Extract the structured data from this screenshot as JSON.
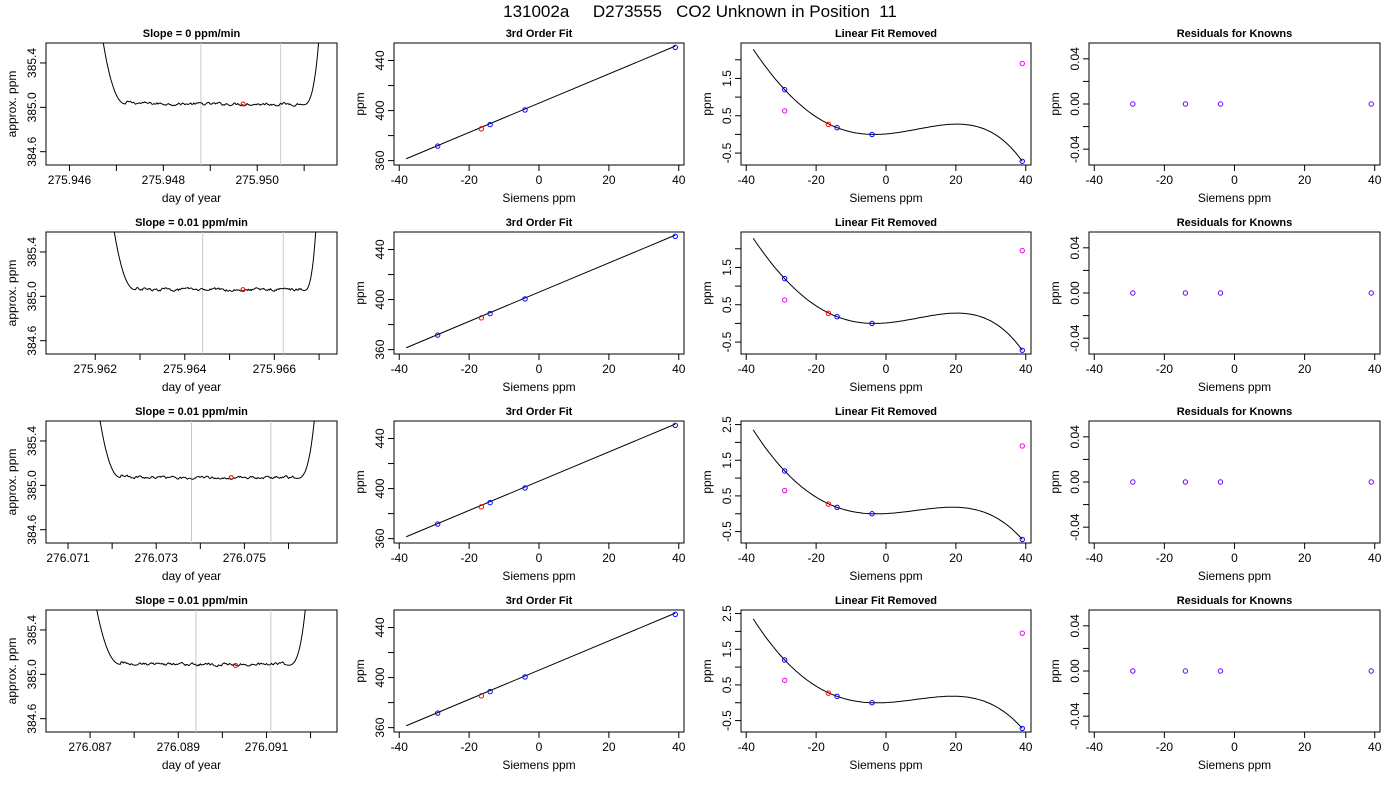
{
  "page": {
    "title": "131002a     D273555   CO2 Unknown in Position  11"
  },
  "chart_data": [
    {
      "type": "line",
      "row": 0,
      "col": 0,
      "title": "Slope =  0  ppm/min",
      "xlabel": "day of year",
      "ylabel": "approx. ppm",
      "xlim": [
        275.9455,
        275.9517
      ],
      "ylim": [
        384.48,
        385.58
      ],
      "xticks": [
        275.946,
        275.948,
        275.95
      ],
      "xminor_ticks": [
        275.947,
        275.949,
        275.951
      ],
      "yticks": [
        384.6,
        385.0,
        385.4
      ],
      "vlines": [
        275.9488,
        275.9505
      ],
      "trace": {
        "t0": 275.9466,
        "t_rise": 275.9472,
        "t_flat_end": 275.9509,
        "t1": 275.9514,
        "level": 385.03,
        "start_level": 385.58,
        "noise": 0.012,
        "drift": 0
      },
      "marker": {
        "x": 275.9497,
        "y": 385.03
      }
    },
    {
      "type": "scatter",
      "row": 0,
      "col": 1,
      "title": "3rd Order Fit",
      "xlabel": "Siemens ppm",
      "ylabel": "ppm",
      "xlim": [
        -41.5,
        41.5
      ],
      "ylim": [
        356.5,
        454
      ],
      "xticks": [
        -40,
        -20,
        0,
        20,
        40
      ],
      "yticks": [
        360,
        400,
        440
      ],
      "yminor_ticks": [
        380,
        420
      ],
      "fit_line": {
        "x": [
          -38,
          39
        ],
        "y": [
          361.5,
          451.5
        ]
      },
      "points": [
        {
          "x": -29,
          "y": 371.6,
          "color": "#0000ff"
        },
        {
          "x": -14,
          "y": 388.8,
          "color": "#0000ff"
        },
        {
          "x": -4,
          "y": 400.5,
          "color": "#0000ff"
        },
        {
          "x": 39,
          "y": 450.5,
          "color": "#0000ff"
        },
        {
          "x": -16.5,
          "y": 385.4,
          "color": "#ff0000"
        }
      ]
    },
    {
      "type": "line",
      "row": 0,
      "col": 2,
      "title": "Linear Fit Removed",
      "xlabel": "Siemens ppm",
      "ylabel": "ppm",
      "xlim": [
        -41.5,
        41.5
      ],
      "ylim": [
        -0.82,
        2.45
      ],
      "xticks": [
        -40,
        -20,
        0,
        20,
        40
      ],
      "yticks": [
        -0.5,
        0.5,
        1.5
      ],
      "yminor_ticks": [
        0,
        1,
        2
      ],
      "curve_points": [
        [
          -38,
          2.28
        ],
        [
          -29,
          1.2
        ],
        [
          -14,
          0.18
        ],
        [
          -4,
          0.0
        ],
        [
          39,
          -0.72
        ]
      ],
      "points": [
        {
          "x": -29,
          "y": 1.2,
          "color": "#0000ff"
        },
        {
          "x": -14,
          "y": 0.18,
          "color": "#0000ff"
        },
        {
          "x": -4,
          "y": 0.0,
          "color": "#0000ff"
        },
        {
          "x": 39,
          "y": -0.72,
          "color": "#0000ff"
        },
        {
          "x": -16.5,
          "y": 0.27,
          "color": "#ff0000"
        },
        {
          "x": -29,
          "y": 0.63,
          "color": "#ee00ee"
        },
        {
          "x": 39,
          "y": 1.9,
          "color": "#ee00ee"
        }
      ]
    },
    {
      "type": "scatter",
      "row": 0,
      "col": 3,
      "title": "Residuals for Knowns",
      "xlabel": "Siemens ppm",
      "ylabel": "ppm",
      "xlim": [
        -41.5,
        41.5
      ],
      "ylim": [
        -0.054,
        0.054
      ],
      "xticks": [
        -40,
        -20,
        0,
        20,
        40
      ],
      "yticks": [
        -0.04,
        0.0,
        0.04
      ],
      "yminor_ticks": [
        -0.02,
        0.02
      ],
      "points": [
        {
          "x": -29,
          "y": 0,
          "color": "#6a00ff"
        },
        {
          "x": -14,
          "y": 0,
          "color": "#6a00ff"
        },
        {
          "x": -4,
          "y": 0,
          "color": "#6a00ff"
        },
        {
          "x": 39,
          "y": 0,
          "color": "#6a00ff"
        }
      ]
    },
    {
      "type": "line",
      "row": 1,
      "col": 0,
      "title": "Slope =  0.01  ppm/min",
      "xlabel": "day of year",
      "ylabel": "approx. ppm",
      "xlim": [
        275.9609,
        275.9674
      ],
      "ylim": [
        384.48,
        385.58
      ],
      "xticks": [
        275.962,
        275.964,
        275.966
      ],
      "xminor_ticks": [
        275.963,
        275.965,
        275.967
      ],
      "yticks": [
        384.6,
        385.0,
        385.4
      ],
      "vlines": [
        275.9644,
        275.9662
      ],
      "trace": {
        "t0": 275.9623,
        "t_rise": 275.9629,
        "t_flat_end": 275.9666,
        "t1": 275.967,
        "level": 385.06,
        "start_level": 385.58,
        "noise": 0.012,
        "drift": 0.01
      },
      "marker": {
        "x": 275.9653,
        "y": 385.06
      }
    },
    {
      "type": "scatter",
      "row": 1,
      "col": 1,
      "title": "3rd Order Fit",
      "xlabel": "Siemens ppm",
      "ylabel": "ppm",
      "xlim": [
        -41.5,
        41.5
      ],
      "ylim": [
        356.5,
        454
      ],
      "xticks": [
        -40,
        -20,
        0,
        20,
        40
      ],
      "yticks": [
        360,
        400,
        440
      ],
      "yminor_ticks": [
        380,
        420
      ],
      "fit_line": {
        "x": [
          -38,
          39
        ],
        "y": [
          361.5,
          451.5
        ]
      },
      "points": [
        {
          "x": -29,
          "y": 371.6,
          "color": "#0000ff"
        },
        {
          "x": -14,
          "y": 388.8,
          "color": "#0000ff"
        },
        {
          "x": -4,
          "y": 400.5,
          "color": "#0000ff"
        },
        {
          "x": 39,
          "y": 450.5,
          "color": "#0000ff"
        },
        {
          "x": -16.5,
          "y": 385.4,
          "color": "#ff0000"
        }
      ]
    },
    {
      "type": "line",
      "row": 1,
      "col": 2,
      "title": "Linear Fit Removed",
      "xlabel": "Siemens ppm",
      "ylabel": "ppm",
      "xlim": [
        -41.5,
        41.5
      ],
      "ylim": [
        -0.82,
        2.45
      ],
      "xticks": [
        -40,
        -20,
        0,
        20,
        40
      ],
      "yticks": [
        -0.5,
        0.5,
        1.5
      ],
      "yminor_ticks": [
        0,
        1,
        2
      ],
      "curve_points": [
        [
          -38,
          2.28
        ],
        [
          -29,
          1.2
        ],
        [
          -14,
          0.18
        ],
        [
          -4,
          0.0
        ],
        [
          39,
          -0.72
        ]
      ],
      "points": [
        {
          "x": -29,
          "y": 1.2,
          "color": "#0000ff"
        },
        {
          "x": -14,
          "y": 0.18,
          "color": "#0000ff"
        },
        {
          "x": -4,
          "y": 0.0,
          "color": "#0000ff"
        },
        {
          "x": 39,
          "y": -0.72,
          "color": "#0000ff"
        },
        {
          "x": -16.5,
          "y": 0.27,
          "color": "#ff0000"
        },
        {
          "x": -29,
          "y": 0.63,
          "color": "#ee00ee"
        },
        {
          "x": 39,
          "y": 1.95,
          "color": "#ee00ee"
        }
      ]
    },
    {
      "type": "scatter",
      "row": 1,
      "col": 3,
      "title": "Residuals for Knowns",
      "xlabel": "Siemens ppm",
      "ylabel": "ppm",
      "xlim": [
        -41.5,
        41.5
      ],
      "ylim": [
        -0.054,
        0.054
      ],
      "xticks": [
        -40,
        -20,
        0,
        20,
        40
      ],
      "yticks": [
        -0.04,
        0.0,
        0.04
      ],
      "yminor_ticks": [
        -0.02,
        0.02
      ],
      "points": [
        {
          "x": -29,
          "y": 0,
          "color": "#6a00ff"
        },
        {
          "x": -14,
          "y": 0,
          "color": "#6a00ff"
        },
        {
          "x": -4,
          "y": 0,
          "color": "#6a00ff"
        },
        {
          "x": 39,
          "y": 0,
          "color": "#6a00ff"
        }
      ]
    },
    {
      "type": "line",
      "row": 2,
      "col": 0,
      "title": "Slope =  0.01  ppm/min",
      "xlabel": "day of year",
      "ylabel": "approx. ppm",
      "xlim": [
        276.0705,
        276.0771
      ],
      "ylim": [
        384.48,
        385.58
      ],
      "xticks": [
        276.071,
        276.073,
        276.075
      ],
      "xminor_ticks": [
        276.072,
        276.074,
        276.076
      ],
      "yticks": [
        384.6,
        385.0,
        385.4
      ],
      "vlines": [
        276.0738,
        276.0756
      ],
      "trace": {
        "t0": 276.0716,
        "t_rise": 276.0722,
        "t_flat_end": 276.0761,
        "t1": 276.0767,
        "level": 385.07,
        "start_level": 385.58,
        "noise": 0.011,
        "drift": 0.005
      },
      "marker": {
        "x": 276.0747,
        "y": 385.07
      }
    },
    {
      "type": "scatter",
      "row": 2,
      "col": 1,
      "title": "3rd Order Fit",
      "xlabel": "Siemens ppm",
      "ylabel": "ppm",
      "xlim": [
        -41.5,
        41.5
      ],
      "ylim": [
        356.5,
        454
      ],
      "xticks": [
        -40,
        -20,
        0,
        20,
        40
      ],
      "yticks": [
        360,
        400,
        440
      ],
      "yminor_ticks": [
        380,
        420
      ],
      "fit_line": {
        "x": [
          -38,
          39
        ],
        "y": [
          361.5,
          451.5
        ]
      },
      "points": [
        {
          "x": -29,
          "y": 371.6,
          "color": "#0000ff"
        },
        {
          "x": -14,
          "y": 388.8,
          "color": "#0000ff"
        },
        {
          "x": -4,
          "y": 400.5,
          "color": "#0000ff"
        },
        {
          "x": 39,
          "y": 450.5,
          "color": "#0000ff"
        },
        {
          "x": -16.5,
          "y": 385.4,
          "color": "#ff0000"
        }
      ]
    },
    {
      "type": "line",
      "row": 2,
      "col": 2,
      "title": "Linear Fit Removed",
      "xlabel": "Siemens ppm",
      "ylabel": "ppm",
      "xlim": [
        -41.5,
        41.5
      ],
      "ylim": [
        -0.82,
        2.6
      ],
      "xticks": [
        -40,
        -20,
        0,
        20,
        40
      ],
      "yticks": [
        -0.5,
        0.5,
        1.5,
        2.5
      ],
      "yminor_ticks": [
        0,
        1,
        2
      ],
      "curve_points": [
        [
          -38,
          2.35
        ],
        [
          -29,
          1.2
        ],
        [
          -14,
          0.18
        ],
        [
          -4,
          0.0
        ],
        [
          39,
          -0.72
        ]
      ],
      "points": [
        {
          "x": -29,
          "y": 1.2,
          "color": "#0000ff"
        },
        {
          "x": -14,
          "y": 0.18,
          "color": "#0000ff"
        },
        {
          "x": -4,
          "y": 0.0,
          "color": "#0000ff"
        },
        {
          "x": 39,
          "y": -0.72,
          "color": "#0000ff"
        },
        {
          "x": -16.5,
          "y": 0.27,
          "color": "#ff0000"
        },
        {
          "x": -29,
          "y": 0.65,
          "color": "#ee00ee"
        },
        {
          "x": 39,
          "y": 1.9,
          "color": "#ee00ee"
        }
      ]
    },
    {
      "type": "scatter",
      "row": 2,
      "col": 3,
      "title": "Residuals for Knowns",
      "xlabel": "Siemens ppm",
      "ylabel": "ppm",
      "xlim": [
        -41.5,
        41.5
      ],
      "ylim": [
        -0.054,
        0.054
      ],
      "xticks": [
        -40,
        -20,
        0,
        20,
        40
      ],
      "yticks": [
        -0.04,
        0.0,
        0.04
      ],
      "yminor_ticks": [
        -0.02,
        0.02
      ],
      "points": [
        {
          "x": -29,
          "y": 0,
          "color": "#6a00ff"
        },
        {
          "x": -14,
          "y": 0,
          "color": "#6a00ff"
        },
        {
          "x": -4,
          "y": 0,
          "color": "#6a00ff"
        },
        {
          "x": 39,
          "y": 0,
          "color": "#6a00ff"
        }
      ]
    },
    {
      "type": "line",
      "row": 3,
      "col": 0,
      "title": "Slope =  0.01  ppm/min",
      "xlabel": "day of year",
      "ylabel": "approx. ppm",
      "xlim": [
        276.086,
        276.0926
      ],
      "ylim": [
        384.48,
        385.58
      ],
      "xticks": [
        276.087,
        276.089,
        276.091
      ],
      "xminor_ticks": [
        276.088,
        276.09,
        276.092
      ],
      "yticks": [
        384.6,
        385.0,
        385.4
      ],
      "vlines": [
        276.0894,
        276.0911
      ],
      "trace": {
        "t0": 276.087,
        "t_rise": 276.0877,
        "t_flat_end": 276.0914,
        "t1": 276.092,
        "level": 385.09,
        "start_level": 385.58,
        "noise": 0.012,
        "drift": 0.005
      },
      "marker": {
        "x": 276.0903,
        "y": 385.08
      }
    },
    {
      "type": "scatter",
      "row": 3,
      "col": 1,
      "title": "3rd Order Fit",
      "xlabel": "Siemens ppm",
      "ylabel": "ppm",
      "xlim": [
        -41.5,
        41.5
      ],
      "ylim": [
        356.5,
        454
      ],
      "xticks": [
        -40,
        -20,
        0,
        20,
        40
      ],
      "yticks": [
        360,
        400,
        440
      ],
      "yminor_ticks": [
        380,
        420
      ],
      "fit_line": {
        "x": [
          -38,
          39
        ],
        "y": [
          361.5,
          451.5
        ]
      },
      "points": [
        {
          "x": -29,
          "y": 371.6,
          "color": "#0000ff"
        },
        {
          "x": -14,
          "y": 388.8,
          "color": "#0000ff"
        },
        {
          "x": -4,
          "y": 400.5,
          "color": "#0000ff"
        },
        {
          "x": 39,
          "y": 450.5,
          "color": "#0000ff"
        },
        {
          "x": -16.5,
          "y": 385.4,
          "color": "#ff0000"
        }
      ]
    },
    {
      "type": "line",
      "row": 3,
      "col": 2,
      "title": "Linear Fit Removed",
      "xlabel": "Siemens ppm",
      "ylabel": "ppm",
      "xlim": [
        -41.5,
        41.5
      ],
      "ylim": [
        -0.82,
        2.6
      ],
      "xticks": [
        -40,
        -20,
        0,
        20,
        40
      ],
      "yticks": [
        -0.5,
        0.5,
        1.5,
        2.5
      ],
      "yminor_ticks": [
        0,
        1,
        2
      ],
      "curve_points": [
        [
          -38,
          2.35
        ],
        [
          -29,
          1.2
        ],
        [
          -14,
          0.18
        ],
        [
          -4,
          0.0
        ],
        [
          39,
          -0.72
        ]
      ],
      "points": [
        {
          "x": -29,
          "y": 1.2,
          "color": "#0000ff"
        },
        {
          "x": -14,
          "y": 0.18,
          "color": "#0000ff"
        },
        {
          "x": -4,
          "y": 0.0,
          "color": "#0000ff"
        },
        {
          "x": 39,
          "y": -0.72,
          "color": "#0000ff"
        },
        {
          "x": -16.5,
          "y": 0.27,
          "color": "#ff0000"
        },
        {
          "x": -29,
          "y": 0.63,
          "color": "#ee00ee"
        },
        {
          "x": 39,
          "y": 1.95,
          "color": "#ee00ee"
        }
      ]
    },
    {
      "type": "scatter",
      "row": 3,
      "col": 3,
      "title": "Residuals for Knowns",
      "xlabel": "Siemens ppm",
      "ylabel": "ppm",
      "xlim": [
        -41.5,
        41.5
      ],
      "ylim": [
        -0.054,
        0.054
      ],
      "xticks": [
        -40,
        -20,
        0,
        20,
        40
      ],
      "yticks": [
        -0.04,
        0.0,
        0.04
      ],
      "yminor_ticks": [
        -0.02,
        0.02
      ],
      "points": [
        {
          "x": -29,
          "y": 0,
          "color": "#6a00ff"
        },
        {
          "x": -14,
          "y": 0,
          "color": "#6a00ff"
        },
        {
          "x": -4,
          "y": 0,
          "color": "#6a00ff"
        },
        {
          "x": 39,
          "y": 0,
          "color": "#6a00ff"
        }
      ]
    }
  ]
}
